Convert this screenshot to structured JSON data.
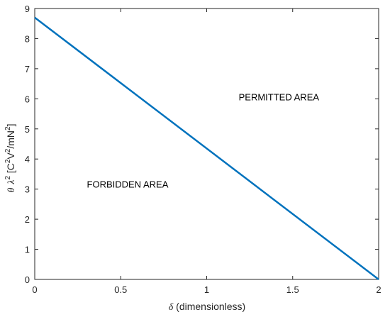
{
  "chart_data": {
    "type": "line",
    "title": "",
    "xlabel": {
      "symbol": "δ",
      "text": " (dimensionless)"
    },
    "ylabel": {
      "theta": "θ",
      "lambda": "λ",
      "lambda_exp": "2",
      "unit_open": " [C",
      "c_exp": "2",
      "unit_v": "V",
      "v_exp": "2",
      "unit_mn": "/mN",
      "n_exp": "2",
      "unit_close": "]"
    },
    "xlim": [
      0,
      2
    ],
    "ylim": [
      0,
      9
    ],
    "xticks": [
      0,
      0.5,
      1,
      1.5,
      2
    ],
    "xtick_labels": [
      "0",
      "0.5",
      "1",
      "1.5",
      "2"
    ],
    "yticks": [
      0,
      1,
      2,
      3,
      4,
      5,
      6,
      7,
      8,
      9
    ],
    "ytick_labels": [
      "0",
      "1",
      "2",
      "3",
      "4",
      "5",
      "6",
      "7",
      "8",
      "9"
    ],
    "grid": false,
    "series": [
      {
        "x": [
          0,
          2
        ],
        "y": [
          8.7,
          0
        ],
        "color": "#0072BD"
      }
    ],
    "annotations": [
      {
        "text": "PERMITTED AREA",
        "x": 1.42,
        "y": 5.95
      },
      {
        "text": "FORBIDDEN AREA",
        "x": 0.54,
        "y": 3.05
      }
    ],
    "axis_color": "#262626"
  }
}
